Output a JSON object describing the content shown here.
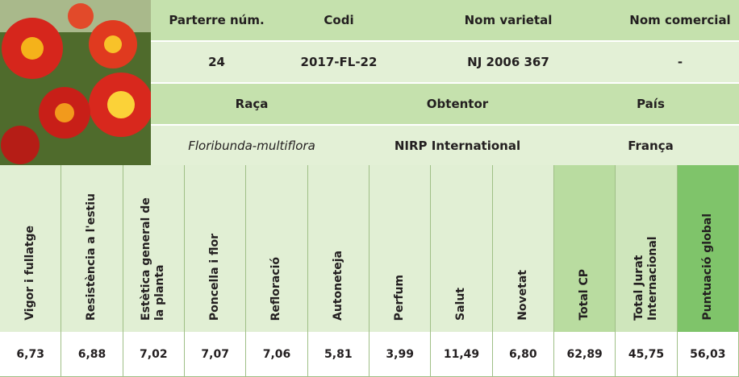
{
  "variety": {
    "labels": [
      "Parterre núm.",
      "Codi",
      "Nom varietal",
      "Nom comercial"
    ],
    "values": [
      "24",
      "2017-FL-22",
      "NJ 2006 367",
      "-"
    ]
  },
  "origin": {
    "labels": [
      "Raça",
      "Obtentor",
      "País"
    ],
    "values": [
      "Floribunda-multiflora",
      "NIRP International",
      "França"
    ]
  },
  "scores": {
    "columns": [
      "Vigor i fullatge",
      "Resistència a l'estiu",
      "Estètica general de la planta",
      "Poncella i flor",
      "Refloració",
      "Autoneteja",
      "Perfum",
      "Salut",
      "Novetat",
      "Total CP",
      "Total Jurat Internacional",
      "Puntuació global"
    ],
    "values": [
      "6,73",
      "6,88",
      "7,02",
      "7,07",
      "7,06",
      "5,81",
      "3,99",
      "11,49",
      "6,80",
      "62,89",
      "45,75",
      "56,03"
    ]
  }
}
